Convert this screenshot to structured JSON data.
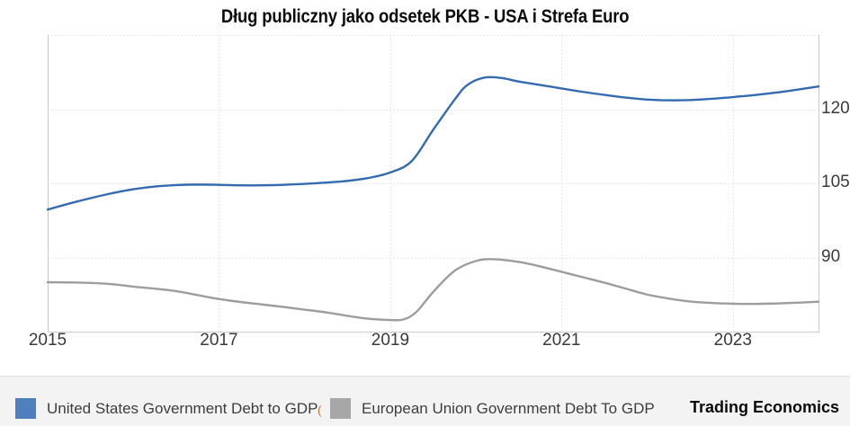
{
  "title": "Dług publiczny jako odsetek PKB - USA i Strefa Euro",
  "attribution": "Trading Economics",
  "legend": {
    "items": [
      {
        "label": "United States Government Debt to GDP",
        "suffix": "(",
        "color": "#4d80bd"
      },
      {
        "label": "European Union Government Debt To GDP",
        "suffix": "",
        "color": "#a7a7a7"
      }
    ]
  },
  "axes": {
    "x": {
      "min": 2015,
      "max": 2024,
      "tick_labels": [
        "2015",
        "2017",
        "2019",
        "2021",
        "2023"
      ],
      "tick_values": [
        2015,
        2017,
        2019,
        2021,
        2023
      ]
    },
    "y": {
      "min": 75,
      "max": 135,
      "tick_labels": [
        "120",
        "105",
        "90"
      ],
      "tick_values": [
        120,
        105,
        90
      ],
      "gridline_values": [
        135,
        120,
        105,
        90
      ]
    }
  },
  "chart_data": {
    "type": "line",
    "title": "Dług publiczny jako odsetek PKB - USA i Strefa Euro",
    "xlabel": "",
    "ylabel": "",
    "xlim": [
      2015,
      2024
    ],
    "ylim": [
      75,
      135
    ],
    "grid": true,
    "legend_position": "bottom",
    "series": [
      {
        "name": "United States Government Debt to GDP",
        "color": "#346ab0",
        "x": [
          2015.0,
          2015.25,
          2015.5,
          2015.75,
          2016.0,
          2016.25,
          2016.5,
          2016.75,
          2017.0,
          2017.25,
          2017.5,
          2017.75,
          2018.0,
          2018.25,
          2018.5,
          2018.75,
          2019.0,
          2019.25,
          2019.5,
          2019.75,
          2019.9,
          2020.1,
          2020.3,
          2020.5,
          2020.75,
          2021.0,
          2021.25,
          2021.5,
          2021.75,
          2022.0,
          2022.25,
          2022.5,
          2022.75,
          2023.0,
          2023.25,
          2023.5,
          2023.75,
          2024.0
        ],
        "values": [
          99.7,
          100.9,
          102.0,
          103.0,
          103.8,
          104.35,
          104.65,
          104.75,
          104.7,
          104.6,
          104.6,
          104.7,
          104.9,
          105.15,
          105.5,
          106.1,
          107.2,
          109.5,
          115.8,
          121.9,
          124.9,
          126.4,
          126.3,
          125.6,
          124.9,
          124.2,
          123.5,
          122.9,
          122.35,
          121.95,
          121.8,
          121.85,
          122.1,
          122.45,
          122.85,
          123.35,
          123.95,
          124.6
        ]
      },
      {
        "name": "European Union Government Debt To GDP",
        "color": "#9d9d9d",
        "x": [
          2015.0,
          2015.25,
          2015.5,
          2015.75,
          2016.0,
          2016.25,
          2016.5,
          2016.75,
          2017.0,
          2017.25,
          2017.5,
          2017.75,
          2018.0,
          2018.25,
          2018.5,
          2018.75,
          2019.0,
          2019.15,
          2019.3,
          2019.5,
          2019.75,
          2020.0,
          2020.2,
          2020.5,
          2020.75,
          2021.0,
          2021.25,
          2021.5,
          2021.75,
          2022.0,
          2022.25,
          2022.5,
          2022.75,
          2023.0,
          2023.25,
          2023.5,
          2023.75,
          2024.0
        ],
        "values": [
          85.0,
          84.95,
          84.85,
          84.6,
          84.1,
          83.7,
          83.2,
          82.4,
          81.6,
          81.0,
          80.5,
          80.0,
          79.45,
          78.9,
          78.2,
          77.6,
          77.35,
          77.45,
          78.9,
          83.0,
          87.3,
          89.3,
          89.65,
          89.1,
          88.2,
          87.1,
          86.0,
          84.9,
          83.7,
          82.5,
          81.7,
          81.1,
          80.8,
          80.65,
          80.6,
          80.7,
          80.85,
          81.05
        ]
      }
    ]
  },
  "colors": {
    "grid": "#e0e0e0",
    "border": "#cccccc",
    "legend_bg": "#f3f3f3"
  }
}
